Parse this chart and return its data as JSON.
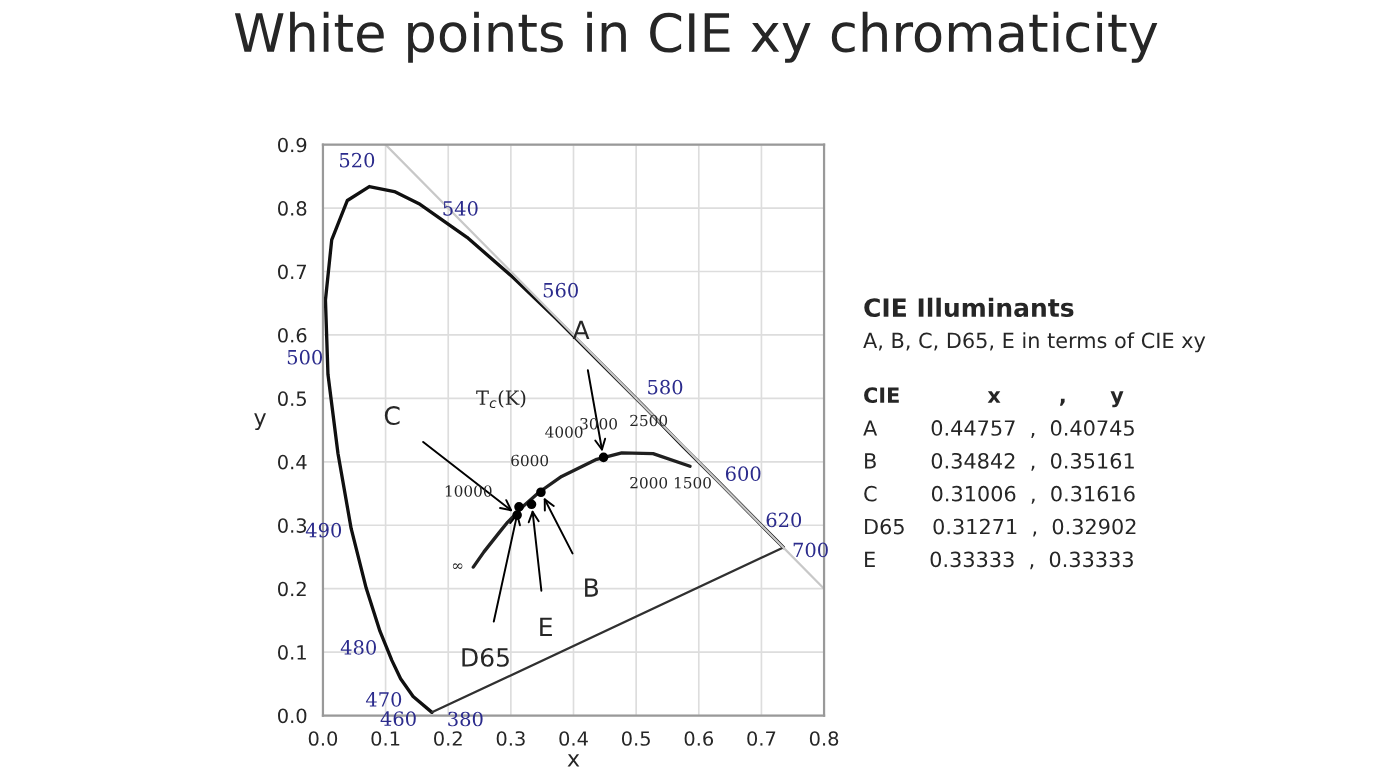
{
  "chart_data": {
    "type": "line",
    "title": "White points in CIE xy chromaticity",
    "xlabel": "x",
    "ylabel": "y",
    "xlim": [
      0,
      0.8
    ],
    "ylim": [
      0,
      0.9
    ],
    "xticks": [
      {
        "value": 0,
        "label": "0.0"
      },
      0.1,
      0.2,
      0.3,
      0.4,
      0.5,
      0.6,
      0.7,
      0.8
    ],
    "yticks": [
      {
        "value": 0,
        "label": "0.0"
      },
      0.1,
      0.2,
      0.3,
      0.4,
      0.5,
      0.6,
      0.7,
      0.8,
      0.9
    ],
    "grid": true,
    "legend": false,
    "series": [
      {
        "marker": "none",
        "color": "#101010",
        "x": [
          0.174,
          0.144,
          0.124,
          0.11,
          0.091,
          0.069,
          0.045,
          0.024,
          0.008,
          0.004,
          0.014,
          0.039,
          0.074,
          0.114,
          0.155,
          0.23,
          0.302,
          0.373,
          0.444,
          0.513,
          0.575,
          0.627,
          0.666,
          0.692,
          0.719,
          0.735
        ],
        "values": [
          0.005,
          0.03,
          0.058,
          0.087,
          0.133,
          0.201,
          0.295,
          0.413,
          0.538,
          0.655,
          0.75,
          0.812,
          0.834,
          0.826,
          0.806,
          0.754,
          0.692,
          0.625,
          0.555,
          0.487,
          0.424,
          0.373,
          0.334,
          0.308,
          0.281,
          0.265
        ]
      },
      {
        "marker": "none",
        "color": "#303030",
        "x": [
          0.174,
          0.735
        ],
        "values": [
          0.005,
          0.265
        ]
      },
      {
        "marker": "none",
        "color": "#202020",
        "x": [
          0.24,
          0.257,
          0.281,
          0.295,
          0.322,
          0.345,
          0.381,
          0.437,
          0.477,
          0.527,
          0.586
        ],
        "values": [
          0.234,
          0.258,
          0.288,
          0.305,
          0.332,
          0.352,
          0.377,
          0.404,
          0.414,
          0.413,
          0.393
        ]
      },
      {
        "marker": "none",
        "color": "#c8c8c8",
        "x": [
          0.1,
          0.8
        ],
        "values": [
          0.9,
          0.2
        ]
      },
      {
        "type": "scatter",
        "marker": "circle",
        "color": "#000000",
        "x": [
          0.448,
          0.348,
          0.31,
          0.313,
          0.333
        ],
        "values": [
          0.407,
          0.352,
          0.316,
          0.329,
          0.333
        ]
      }
    ],
    "annotations": [
      {
        "text": "380",
        "x": 0.1741,
        "y": 0.005
      },
      {
        "text": "460",
        "x": 0.144,
        "y": 0.0297
      },
      {
        "text": "470",
        "x": 0.1241,
        "y": 0.0578
      },
      {
        "text": "480",
        "x": 0.0913,
        "y": 0.1327
      },
      {
        "text": "490",
        "x": 0.0454,
        "y": 0.295
      },
      {
        "text": "500",
        "x": 0.0082,
        "y": 0.5384
      },
      {
        "text": "520",
        "x": 0.0743,
        "y": 0.8338
      },
      {
        "text": "540",
        "x": 0.2296,
        "y": 0.7543
      },
      {
        "text": "560",
        "x": 0.3731,
        "y": 0.6245
      },
      {
        "text": "580",
        "x": 0.5125,
        "y": 0.4866
      },
      {
        "text": "600",
        "x": 0.627,
        "y": 0.3725
      },
      {
        "text": "620",
        "x": 0.6915,
        "y": 0.3083
      },
      {
        "text": "700",
        "x": 0.7347,
        "y": 0.2653
      },
      {
        "text": "A",
        "x": 0.44757,
        "y": 0.40745
      },
      {
        "text": "B",
        "x": 0.34842,
        "y": 0.35161
      },
      {
        "text": "C",
        "x": 0.31006,
        "y": 0.31616
      },
      {
        "text": "D65",
        "x": 0.31271,
        "y": 0.32902
      },
      {
        "text": "E",
        "x": 0.33333,
        "y": 0.33333
      },
      "10000",
      "6000",
      "4000",
      "3000",
      "2500",
      "2000",
      "1500",
      "∞",
      "T$_{c}$(K)",
      "CIE Illuminants",
      "A, B, C, D65, E in terms of CIE xy",
      "CIE            x        ,      y",
      "A        0.44757  ,  0.40745",
      "B        0.34842  ,  0.35161",
      "C        0.31006  ,  0.31616",
      "D65    0.31271  ,  0.32902",
      "E        0.33333  ,  0.33333"
    ]
  }
}
